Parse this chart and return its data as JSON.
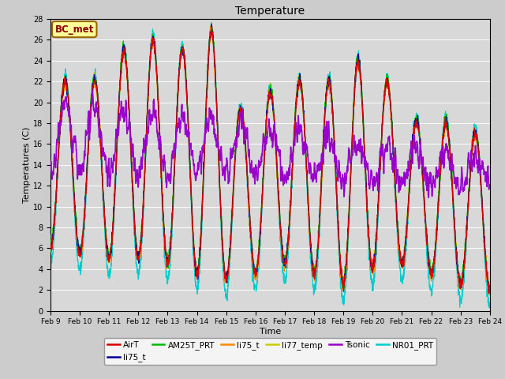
{
  "title": "Temperature",
  "xlabel": "Time",
  "ylabel": "Temperatures (C)",
  "ylim": [
    0,
    28
  ],
  "xlim": [
    0,
    15
  ],
  "fig_width": 6.4,
  "fig_height": 4.8,
  "dpi": 100,
  "background_color": "#d8d8d8",
  "fig_color": "#cccccc",
  "annotation_text": "BC_met",
  "annotation_bg": "#ffff99",
  "annotation_border": "#996600",
  "annotation_text_color": "#880000",
  "xtick_labels": [
    "Feb 9",
    "Feb 10",
    "Feb 11",
    "Feb 12",
    "Feb 13",
    "Feb 14",
    "Feb 15",
    "Feb 16",
    "Feb 17",
    "Feb 18",
    "Feb 19",
    "Feb 20",
    "Feb 21",
    "Feb 22",
    "Feb 23",
    "Feb 24"
  ],
  "legend": [
    {
      "label": "AirT",
      "color": "#dd0000"
    },
    {
      "label": "li75_t",
      "color": "#000099"
    },
    {
      "label": "AM25T_PRT",
      "color": "#00bb00"
    },
    {
      "label": "li75_t",
      "color": "#ff8800"
    },
    {
      "label": "li77_temp",
      "color": "#cccc00"
    },
    {
      "label": "Tsonic",
      "color": "#9900cc"
    },
    {
      "label": "NR01_PRT",
      "color": "#00cccc"
    }
  ]
}
